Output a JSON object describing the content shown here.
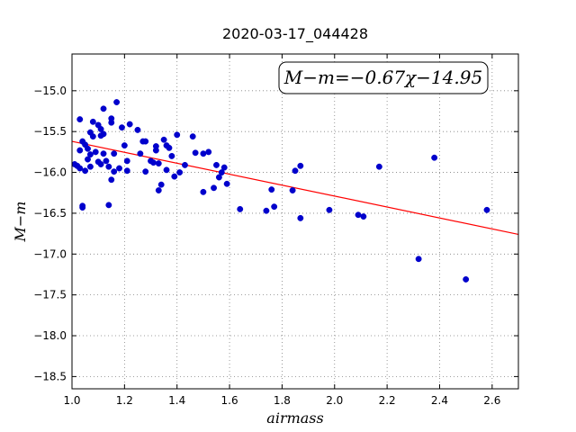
{
  "chart_data": {
    "type": "scatter",
    "title": "2020-03-17_044428",
    "xlabel": "airmass",
    "ylabel": "M−m",
    "xlim": [
      1.0,
      2.7
    ],
    "ylim": [
      -18.65,
      -14.55
    ],
    "x_ticks": [
      1.0,
      1.2,
      1.4,
      1.6,
      1.8,
      2.0,
      2.2,
      2.4,
      2.6
    ],
    "x_tick_labels": [
      "1.0",
      "1.2",
      "1.4",
      "1.6",
      "1.8",
      "2.0",
      "2.2",
      "2.4",
      "2.6"
    ],
    "y_ticks": [
      -15.0,
      -15.5,
      -16.0,
      -16.5,
      -17.0,
      -17.5,
      -18.0,
      -18.5
    ],
    "y_tick_labels": [
      "−15.0",
      "−15.5",
      "−16.0",
      "−16.5",
      "−17.0",
      "−17.5",
      "−18.0",
      "−18.5"
    ],
    "grid": true,
    "annotation": "M−m=−0.67χ−14.95",
    "colors": {
      "points": "#0000cc",
      "fit_line": "#ff0000",
      "grid": "#808080"
    },
    "fit": {
      "slope": -0.67,
      "intercept": -14.95,
      "x_range": [
        1.0,
        2.7
      ]
    },
    "series": [
      {
        "points": [
          [
            1.01,
            -15.9
          ],
          [
            1.02,
            -15.92
          ],
          [
            1.03,
            -15.73
          ],
          [
            1.03,
            -15.95
          ],
          [
            1.03,
            -15.35
          ],
          [
            1.04,
            -15.62
          ],
          [
            1.04,
            -16.43
          ],
          [
            1.04,
            -16.41
          ],
          [
            1.05,
            -15.98
          ],
          [
            1.05,
            -15.66
          ],
          [
            1.06,
            -15.84
          ],
          [
            1.06,
            -15.71
          ],
          [
            1.07,
            -15.51
          ],
          [
            1.07,
            -15.93
          ],
          [
            1.07,
            -15.78
          ],
          [
            1.08,
            -15.38
          ],
          [
            1.08,
            -15.56
          ],
          [
            1.09,
            -15.75
          ],
          [
            1.1,
            -15.42
          ],
          [
            1.1,
            -15.87
          ],
          [
            1.11,
            -15.55
          ],
          [
            1.11,
            -15.47
          ],
          [
            1.11,
            -15.9
          ],
          [
            1.12,
            -15.22
          ],
          [
            1.12,
            -15.53
          ],
          [
            1.12,
            -15.77
          ],
          [
            1.13,
            -15.86
          ],
          [
            1.14,
            -15.93
          ],
          [
            1.14,
            -16.4
          ],
          [
            1.15,
            -15.39
          ],
          [
            1.15,
            -15.34
          ],
          [
            1.15,
            -16.09
          ],
          [
            1.16,
            -15.77
          ],
          [
            1.16,
            -15.99
          ],
          [
            1.17,
            -15.14
          ],
          [
            1.18,
            -15.95
          ],
          [
            1.19,
            -15.45
          ],
          [
            1.2,
            -15.67
          ],
          [
            1.21,
            -15.86
          ],
          [
            1.21,
            -15.98
          ],
          [
            1.22,
            -15.41
          ],
          [
            1.25,
            -15.48
          ],
          [
            1.26,
            -15.77
          ],
          [
            1.27,
            -15.62
          ],
          [
            1.28,
            -15.62
          ],
          [
            1.28,
            -15.99
          ],
          [
            1.3,
            -15.86
          ],
          [
            1.31,
            -15.88
          ],
          [
            1.32,
            -15.73
          ],
          [
            1.32,
            -15.68
          ],
          [
            1.33,
            -16.22
          ],
          [
            1.33,
            -15.89
          ],
          [
            1.34,
            -16.15
          ],
          [
            1.35,
            -15.6
          ],
          [
            1.36,
            -15.67
          ],
          [
            1.36,
            -15.97
          ],
          [
            1.37,
            -15.7
          ],
          [
            1.38,
            -15.8
          ],
          [
            1.39,
            -16.05
          ],
          [
            1.4,
            -15.54
          ],
          [
            1.41,
            -16.0
          ],
          [
            1.43,
            -15.91
          ],
          [
            1.46,
            -15.56
          ],
          [
            1.47,
            -15.76
          ],
          [
            1.5,
            -15.77
          ],
          [
            1.5,
            -16.24
          ],
          [
            1.52,
            -15.75
          ],
          [
            1.54,
            -16.19
          ],
          [
            1.55,
            -15.91
          ],
          [
            1.56,
            -16.06
          ],
          [
            1.57,
            -16.0
          ],
          [
            1.58,
            -15.94
          ],
          [
            1.59,
            -16.14
          ],
          [
            1.64,
            -16.45
          ],
          [
            1.74,
            -16.47
          ],
          [
            1.76,
            -16.21
          ],
          [
            1.77,
            -16.42
          ],
          [
            1.84,
            -16.22
          ],
          [
            1.85,
            -15.98
          ],
          [
            1.87,
            -15.92
          ],
          [
            1.87,
            -16.56
          ],
          [
            1.98,
            -16.46
          ],
          [
            2.09,
            -16.52
          ],
          [
            2.11,
            -16.54
          ],
          [
            2.17,
            -15.93
          ],
          [
            2.32,
            -17.06
          ],
          [
            2.38,
            -15.82
          ],
          [
            2.5,
            -17.31
          ],
          [
            2.58,
            -16.46
          ]
        ]
      }
    ]
  }
}
